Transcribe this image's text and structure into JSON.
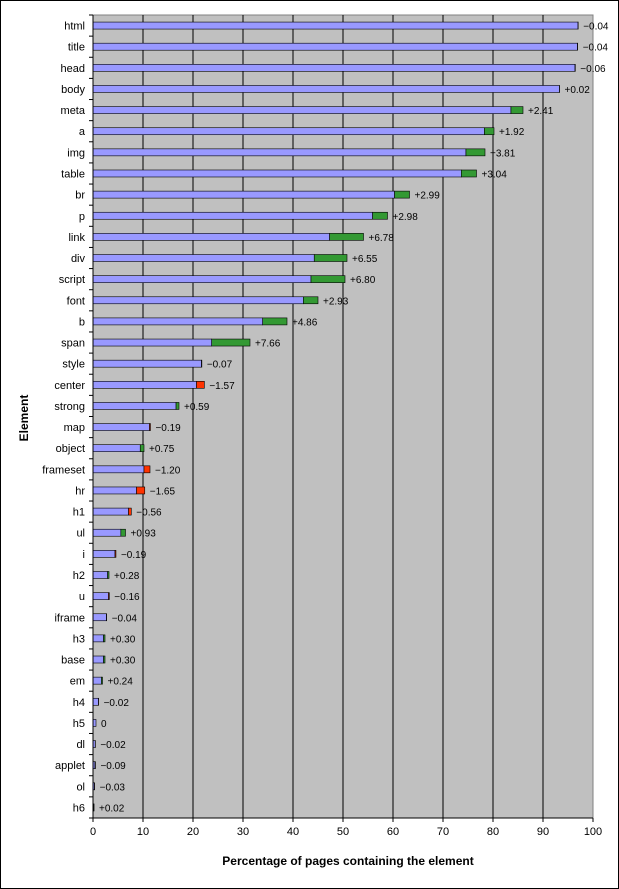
{
  "chart_data": {
    "type": "bar",
    "orientation": "horizontal",
    "stacked": true,
    "title": "",
    "xlabel": "Percentage of pages containing the element",
    "ylabel": "Element",
    "xlim": [
      0,
      100
    ],
    "x_ticks": [
      "0",
      "10",
      "20",
      "30",
      "40",
      "50",
      "60",
      "70",
      "80",
      "90",
      "100"
    ],
    "grid": "vertical",
    "colors": {
      "plot_background": "#c0c0c0",
      "base": "#9999ff",
      "increase": "#339933",
      "decrease": "#ff3300",
      "gridline": "#000000"
    },
    "categories": [
      "html",
      "title",
      "head",
      "body",
      "meta",
      "a",
      "img",
      "table",
      "br",
      "p",
      "link",
      "div",
      "script",
      "font",
      "b",
      "span",
      "style",
      "center",
      "strong",
      "map",
      "object",
      "frameset",
      "hr",
      "h1",
      "ul",
      "i",
      "h2",
      "u",
      "iframe",
      "h3",
      "base",
      "em",
      "h4",
      "h5",
      "dl",
      "applet",
      "ol",
      "h6"
    ],
    "values": [
      97.0,
      96.9,
      96.4,
      93.3,
      86.0,
      80.2,
      78.4,
      76.7,
      63.3,
      58.9,
      54.1,
      50.8,
      50.4,
      45.0,
      38.8,
      31.4,
      21.7,
      20.7,
      17.2,
      11.3,
      10.2,
      10.2,
      8.7,
      7.1,
      6.5,
      4.4,
      3.2,
      3.1,
      2.7,
      2.4,
      2.4,
      1.9,
      1.1,
      0.6,
      0.45,
      0.4,
      0.3,
      0.2
    ],
    "deltas": [
      -0.04,
      -0.04,
      -0.06,
      0.02,
      2.41,
      1.92,
      3.81,
      3.04,
      2.99,
      2.98,
      6.78,
      6.55,
      6.8,
      2.93,
      4.86,
      7.66,
      -0.07,
      -1.57,
      0.59,
      -0.19,
      0.75,
      -1.2,
      -1.65,
      -0.56,
      0.93,
      -0.19,
      0.28,
      -0.16,
      -0.04,
      0.3,
      0.3,
      0.24,
      -0.02,
      0,
      -0.02,
      -0.09,
      -0.03,
      0.02
    ],
    "delta_labels": [
      "−0.04",
      "−0.04",
      "−0.06",
      "+0.02",
      "+2.41",
      "+1.92",
      "+3.81",
      "+3.04",
      "+2.99",
      "+2.98",
      "+6.78",
      "+6.55",
      "+6.80",
      "+2.93",
      "+4.86",
      "+7.66",
      "−0.07",
      "−1.57",
      "+0.59",
      "−0.19",
      "+0.75",
      "−1.20",
      "−1.65",
      "−0.56",
      "+0.93",
      "−0.19",
      "+0.28",
      "−0.16",
      "−0.04",
      "+0.30",
      "+0.30",
      "+0.24",
      "−0.02",
      "0",
      "−0.02",
      "−0.09",
      "−0.03",
      "+0.02"
    ]
  }
}
